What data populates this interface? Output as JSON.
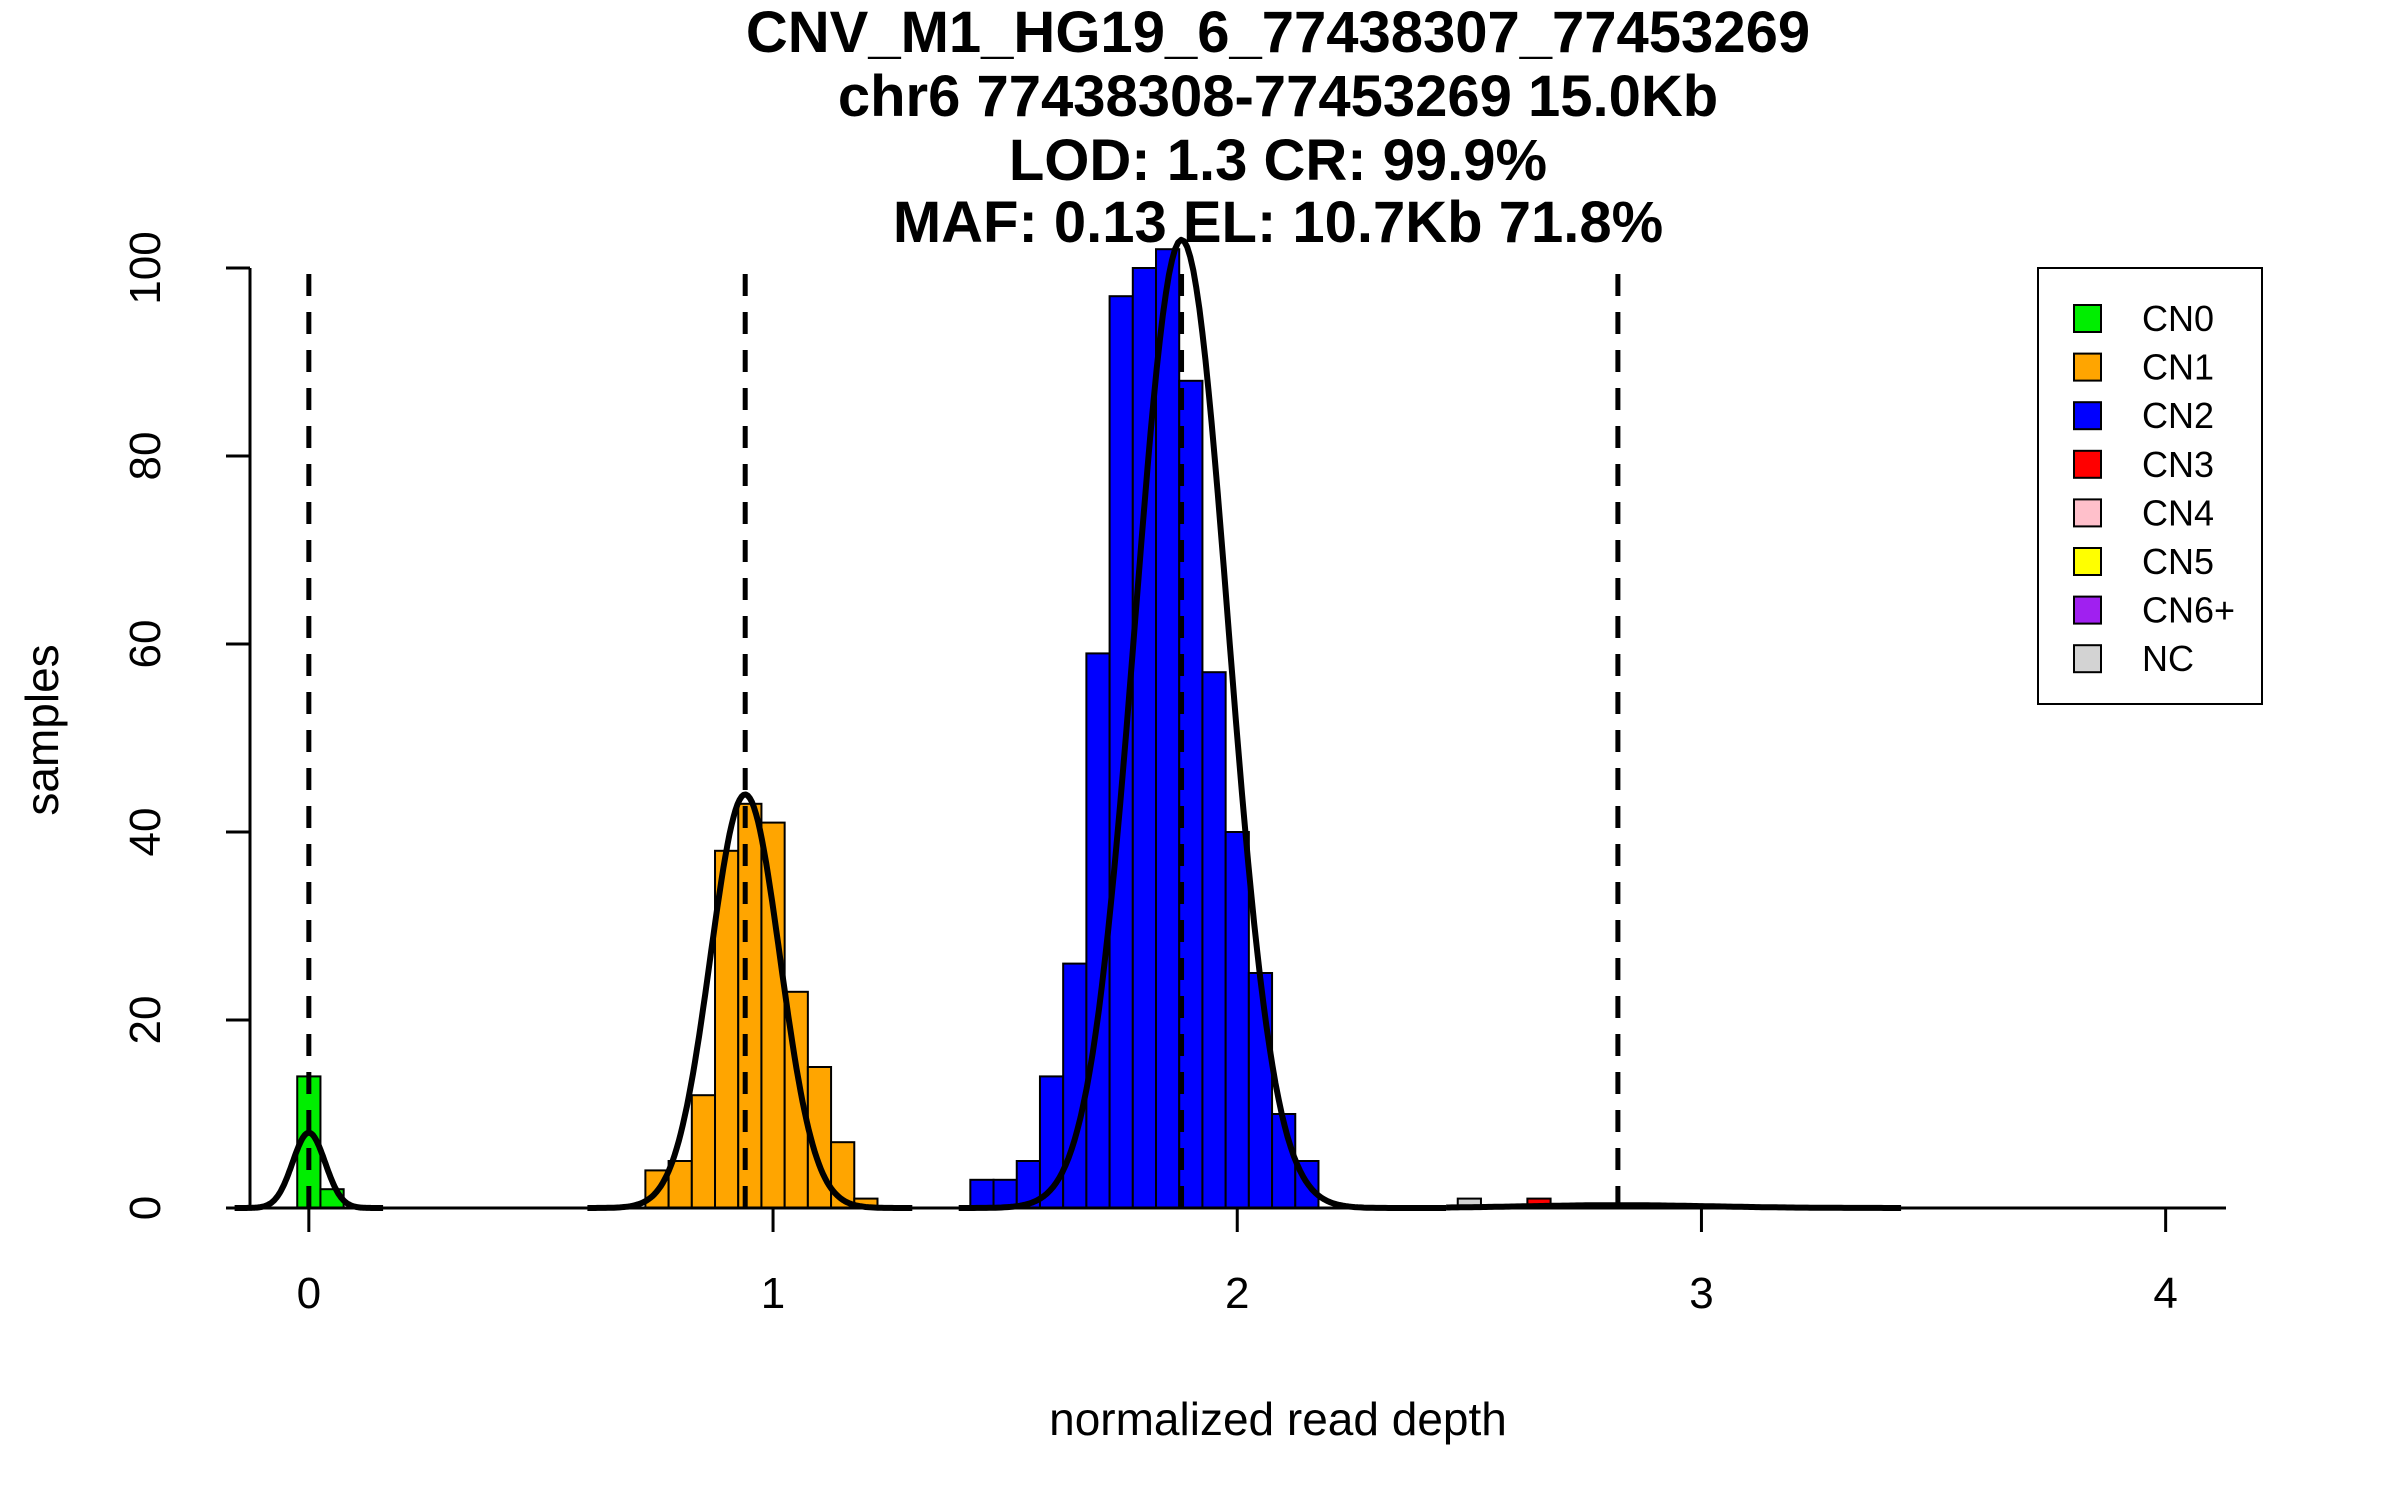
{
  "chart_data": {
    "type": "bar",
    "title_lines": [
      "CNV_M1_HG19_6_77438307_77453269",
      "chr6 77438308-77453269 15.0Kb",
      "LOD: 1.3 CR: 99.9%",
      "MAF: 0.13 EL: 10.7Kb 71.8%"
    ],
    "xlabel": "normalized read depth",
    "ylabel": "samples",
    "xlim": [
      -0.2,
      4.13
    ],
    "ylim": [
      0,
      100
    ],
    "x_ticks": [
      0,
      1,
      2,
      3,
      4
    ],
    "y_ticks": [
      0,
      20,
      40,
      60,
      80,
      100
    ],
    "bin_width": 0.05,
    "colors": {
      "CN0": "#00ee00",
      "CN1": "#ffa500",
      "CN2": "#0000ff",
      "CN3": "#ff0000",
      "CN4": "#ffc0cb",
      "CN5": "#ffff00",
      "CN6+": "#a020f0",
      "NC": "#d3d3d3"
    },
    "legend": {
      "position": "top-right",
      "entries": [
        "CN0",
        "CN1",
        "CN2",
        "CN3",
        "CN4",
        "CN5",
        "CN6+",
        "NC"
      ]
    },
    "bars": [
      {
        "x0": -0.025,
        "value": 14,
        "group": "CN0"
      },
      {
        "x0": 0.025,
        "value": 2,
        "group": "CN0"
      },
      {
        "x0": 0.725,
        "value": 4,
        "group": "CN1"
      },
      {
        "x0": 0.775,
        "value": 5,
        "group": "CN1"
      },
      {
        "x0": 0.825,
        "value": 12,
        "group": "CN1"
      },
      {
        "x0": 0.875,
        "value": 38,
        "group": "CN1"
      },
      {
        "x0": 0.925,
        "value": 43,
        "group": "CN1"
      },
      {
        "x0": 0.975,
        "value": 41,
        "group": "CN1"
      },
      {
        "x0": 1.025,
        "value": 23,
        "group": "CN1"
      },
      {
        "x0": 1.075,
        "value": 15,
        "group": "CN1"
      },
      {
        "x0": 1.125,
        "value": 7,
        "group": "CN1"
      },
      {
        "x0": 1.175,
        "value": 1,
        "group": "CN1"
      },
      {
        "x0": 1.425,
        "value": 3,
        "group": "CN2"
      },
      {
        "x0": 1.475,
        "value": 3,
        "group": "CN2"
      },
      {
        "x0": 1.525,
        "value": 5,
        "group": "CN2"
      },
      {
        "x0": 1.575,
        "value": 14,
        "group": "CN2"
      },
      {
        "x0": 1.625,
        "value": 26,
        "group": "CN2"
      },
      {
        "x0": 1.675,
        "value": 59,
        "group": "CN2"
      },
      {
        "x0": 1.725,
        "value": 97,
        "group": "CN2"
      },
      {
        "x0": 1.775,
        "value": 100,
        "group": "CN2"
      },
      {
        "x0": 1.825,
        "value": 102,
        "group": "CN2"
      },
      {
        "x0": 1.875,
        "value": 88,
        "group": "CN2"
      },
      {
        "x0": 1.925,
        "value": 57,
        "group": "CN2"
      },
      {
        "x0": 1.975,
        "value": 40,
        "group": "CN2"
      },
      {
        "x0": 2.025,
        "value": 25,
        "group": "CN2"
      },
      {
        "x0": 2.075,
        "value": 10,
        "group": "CN2"
      },
      {
        "x0": 2.125,
        "value": 5,
        "group": "CN2"
      },
      {
        "x0": 2.475,
        "value": 1,
        "group": "NC"
      },
      {
        "x0": 2.625,
        "value": 1,
        "group": "CN3"
      }
    ],
    "dashed_lines_x": [
      0,
      0.94,
      1.88,
      2.82
    ],
    "fitted_curves": [
      {
        "name": "CN0",
        "mean": 0.0,
        "sd": 0.035,
        "peak": 8,
        "x_range": [
          -0.16,
          0.16
        ]
      },
      {
        "name": "CN1",
        "mean": 0.94,
        "sd": 0.075,
        "peak": 44,
        "x_range": [
          0.6,
          1.3
        ]
      },
      {
        "name": "CN2",
        "mean": 1.88,
        "sd": 0.1,
        "peak": 103,
        "x_range": [
          1.4,
          2.45
        ]
      },
      {
        "name": "CN3",
        "mean": 2.82,
        "sd": 0.2,
        "peak": 0.3,
        "x_range": [
          2.45,
          3.43
        ]
      }
    ]
  }
}
